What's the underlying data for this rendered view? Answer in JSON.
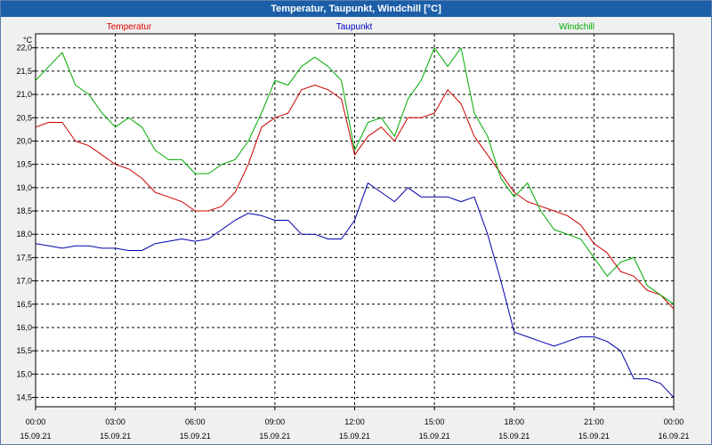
{
  "window": {
    "title": "Temperatur, Taupunkt, Windchill [°C]"
  },
  "chart_data": {
    "type": "line",
    "title": "Temperatur, Taupunkt, Windchill [°C]",
    "ylabel": "°C",
    "ylim": [
      14.3,
      22.3
    ],
    "xlim": [
      0,
      24
    ],
    "grid": true,
    "y_ticks": [
      "22,0",
      "21,5",
      "21,0",
      "20,5",
      "20,0",
      "19,5",
      "19,0",
      "18,5",
      "18,0",
      "17,5",
      "17,0",
      "16,5",
      "16,0",
      "15,5",
      "15,0",
      "14,5"
    ],
    "x_ticks": [
      {
        "time": "00:00",
        "date": "15.09.21"
      },
      {
        "time": "03:00",
        "date": "15.09.21"
      },
      {
        "time": "06:00",
        "date": "15.09.21"
      },
      {
        "time": "09:00",
        "date": "15.09.21"
      },
      {
        "time": "12:00",
        "date": "15.09.21"
      },
      {
        "time": "15:00",
        "date": "15.09.21"
      },
      {
        "time": "18:00",
        "date": "15.09.21"
      },
      {
        "time": "21:00",
        "date": "15.09.21"
      },
      {
        "time": "00:00",
        "date": "16.09.21"
      }
    ],
    "legend": [
      {
        "name": "Temperatur",
        "color": "#dd0000"
      },
      {
        "name": "Taupunkt",
        "color": "#0000cc"
      },
      {
        "name": "Windchill",
        "color": "#00aa00"
      }
    ],
    "series": [
      {
        "name": "Temperatur",
        "color": "#cc0000",
        "x": [
          0,
          0.5,
          1,
          1.5,
          2,
          2.5,
          3,
          3.5,
          4,
          4.5,
          5,
          5.5,
          6,
          6.5,
          7,
          7.5,
          8,
          8.5,
          9,
          9.5,
          10,
          10.5,
          11,
          11.5,
          12,
          12.5,
          13,
          13.5,
          14,
          14.5,
          15,
          15.5,
          16,
          16.5,
          17,
          17.5,
          18,
          18.5,
          19,
          19.5,
          20,
          20.5,
          21,
          21.5,
          22,
          22.5,
          23,
          23.5,
          24
        ],
        "values": [
          20.3,
          20.4,
          20.4,
          20.0,
          19.9,
          19.7,
          19.5,
          19.4,
          19.2,
          18.9,
          18.8,
          18.7,
          18.5,
          18.5,
          18.6,
          18.9,
          19.5,
          20.3,
          20.5,
          20.6,
          21.1,
          21.2,
          21.1,
          20.9,
          19.7,
          20.1,
          20.3,
          20.0,
          20.5,
          20.5,
          20.6,
          21.1,
          20.8,
          20.1,
          19.7,
          19.3,
          18.9,
          18.7,
          18.6,
          18.5,
          18.4,
          18.2,
          17.8,
          17.6,
          17.2,
          17.1,
          16.8,
          16.7,
          16.4
        ]
      },
      {
        "name": "Taupunkt",
        "color": "#0000aa",
        "x": [
          0,
          0.5,
          1,
          1.5,
          2,
          2.5,
          3,
          3.5,
          4,
          4.5,
          5,
          5.5,
          6,
          6.5,
          7,
          7.5,
          8,
          8.5,
          9,
          9.5,
          10,
          10.5,
          11,
          11.5,
          12,
          12.5,
          13,
          13.5,
          14,
          14.5,
          15,
          15.5,
          16,
          16.5,
          17,
          17.5,
          18,
          18.5,
          19,
          19.5,
          20,
          20.5,
          21,
          21.5,
          22,
          22.5,
          23,
          23.5,
          24
        ],
        "values": [
          17.8,
          17.75,
          17.7,
          17.75,
          17.75,
          17.7,
          17.7,
          17.65,
          17.65,
          17.8,
          17.85,
          17.9,
          17.85,
          17.9,
          18.1,
          18.3,
          18.45,
          18.4,
          18.3,
          18.3,
          18.0,
          18.0,
          17.9,
          17.9,
          18.3,
          19.1,
          18.9,
          18.7,
          19.0,
          18.8,
          18.8,
          18.8,
          18.7,
          18.8,
          18.0,
          17.0,
          15.9,
          15.8,
          15.7,
          15.6,
          15.7,
          15.8,
          15.8,
          15.7,
          15.5,
          14.9,
          14.9,
          14.8,
          14.5
        ]
      },
      {
        "name": "Windchill",
        "color": "#00aa00",
        "x": [
          0,
          0.5,
          1,
          1.5,
          2,
          2.5,
          3,
          3.5,
          4,
          4.5,
          5,
          5.5,
          6,
          6.5,
          7,
          7.5,
          8,
          8.5,
          9,
          9.5,
          10,
          10.5,
          11,
          11.5,
          12,
          12.5,
          13,
          13.5,
          14,
          14.5,
          15,
          15.5,
          16,
          16.5,
          17,
          17.5,
          18,
          18.5,
          19,
          19.5,
          20,
          20.5,
          21,
          21.5,
          22,
          22.5,
          23,
          23.5,
          24
        ],
        "values": [
          21.3,
          21.6,
          21.9,
          21.2,
          21.0,
          20.6,
          20.3,
          20.5,
          20.3,
          19.8,
          19.6,
          19.6,
          19.3,
          19.3,
          19.5,
          19.6,
          20.0,
          20.6,
          21.3,
          21.2,
          21.6,
          21.8,
          21.6,
          21.3,
          19.8,
          20.4,
          20.5,
          20.1,
          20.9,
          21.3,
          22.0,
          21.6,
          22.0,
          20.6,
          20.1,
          19.2,
          18.8,
          19.1,
          18.5,
          18.1,
          18.0,
          17.9,
          17.5,
          17.1,
          17.4,
          17.5,
          16.9,
          16.7,
          16.5
        ]
      }
    ]
  }
}
